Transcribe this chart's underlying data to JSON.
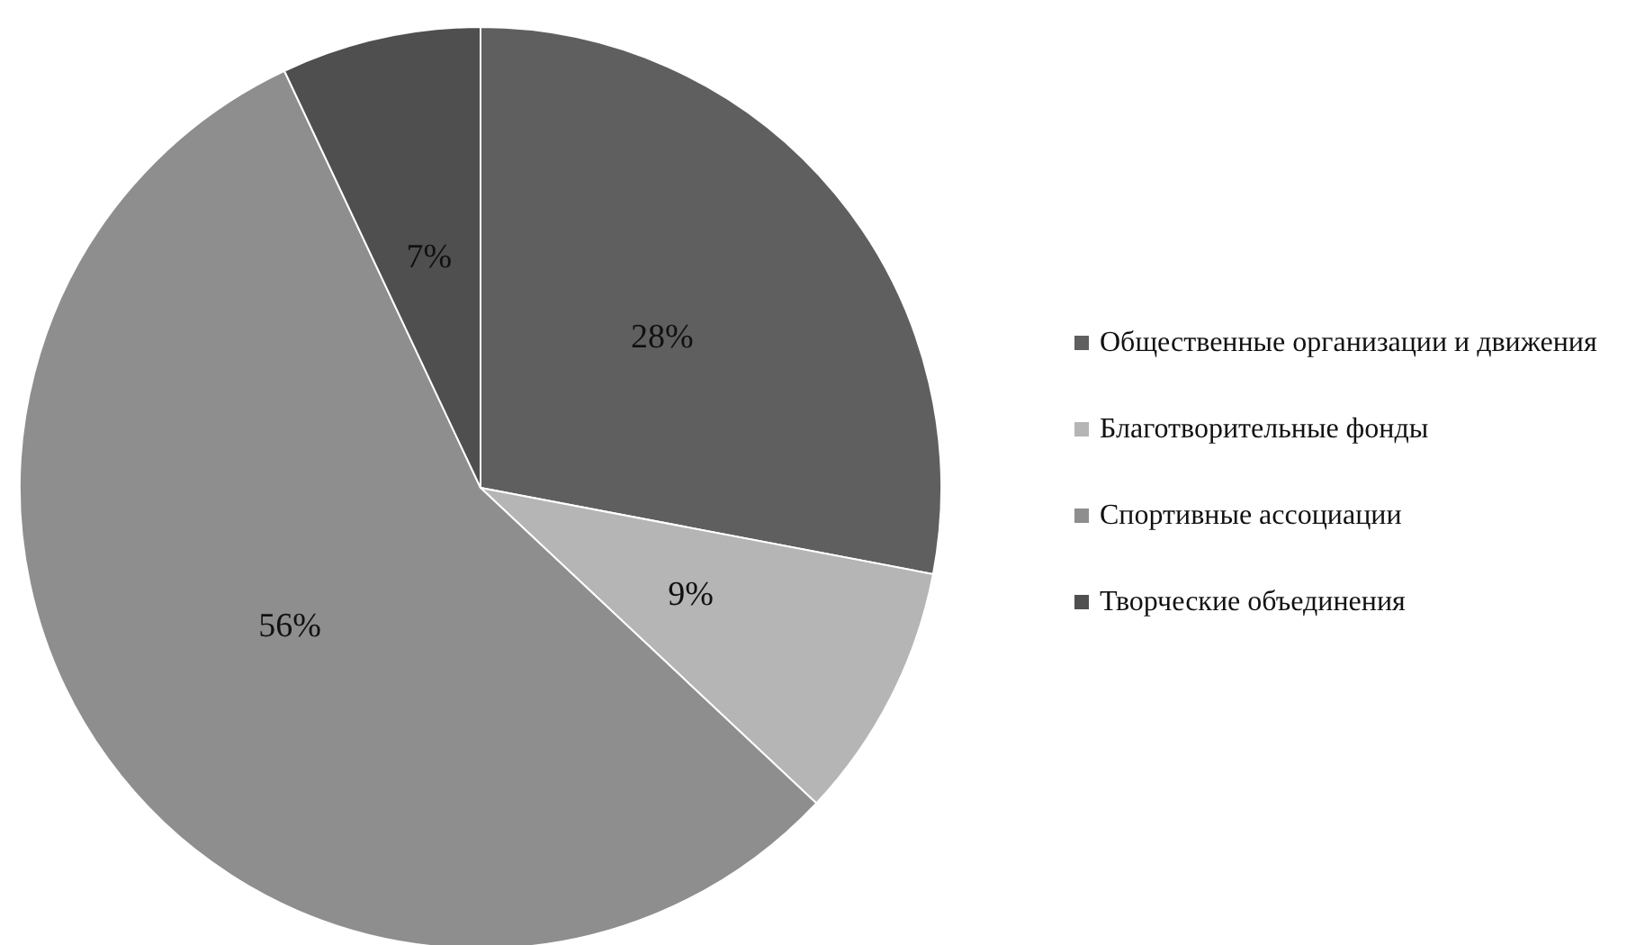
{
  "chart_data": {
    "type": "pie",
    "categories": [
      "Общественные организации и движения",
      "Благотворительные фонды",
      "Спортивные ассоциации",
      "Творческие объединения"
    ],
    "values": [
      28,
      9,
      56,
      7
    ],
    "colors": [
      "#5f5f5f",
      "#b5b5b5",
      "#8e8e8e",
      "#4f4f4f"
    ],
    "value_labels": [
      "28%",
      "9%",
      "56%",
      "7%"
    ],
    "legend": "right"
  }
}
